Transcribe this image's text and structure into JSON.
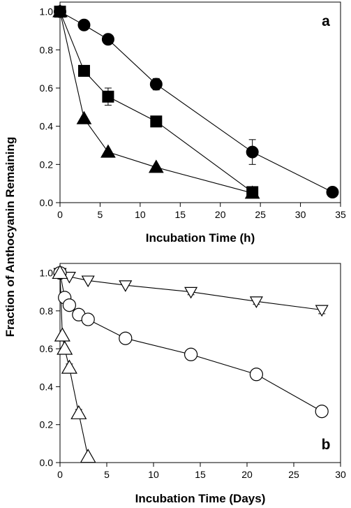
{
  "figure": {
    "ylabel": "Fraction of Anthocyanin Remaining"
  },
  "chart_data": [
    {
      "type": "line",
      "panel_label": "a",
      "xlabel": "Incubation Time (h)",
      "ylabel": "Fraction of Anthocyanin Remaining",
      "xlim": [
        0,
        35
      ],
      "ylim": [
        0,
        1.05
      ],
      "xticks": [
        0,
        5,
        10,
        15,
        20,
        25,
        30,
        35
      ],
      "yticks": [
        0.0,
        0.2,
        0.4,
        0.6,
        0.8,
        1.0
      ],
      "grid": false,
      "series": [
        {
          "marker": "circle-filled",
          "x": [
            0,
            3,
            6,
            12,
            24,
            34
          ],
          "y": [
            1.0,
            0.93,
            0.855,
            0.62,
            0.265,
            0.055
          ],
          "err": [
            0,
            0,
            0,
            0.03,
            0.065,
            0
          ]
        },
        {
          "marker": "square-filled",
          "x": [
            0,
            3,
            6,
            12,
            24
          ],
          "y": [
            1.0,
            0.69,
            0.555,
            0.425,
            0.055
          ],
          "err": [
            0,
            0,
            0.045,
            0,
            0
          ]
        },
        {
          "marker": "triangle-up-filled",
          "x": [
            0,
            3,
            6,
            12,
            24
          ],
          "y": [
            1.0,
            0.44,
            0.265,
            0.185,
            0.05
          ],
          "err": [
            0,
            0,
            0,
            0,
            0
          ]
        }
      ]
    },
    {
      "type": "line",
      "panel_label": "b",
      "xlabel": "Incubation Time (Days)",
      "ylabel": "Fraction of Anthocyanin Remaining",
      "xlim": [
        0,
        30
      ],
      "ylim": [
        0,
        1.05
      ],
      "xticks": [
        0,
        5,
        10,
        15,
        20,
        25,
        30
      ],
      "yticks": [
        0.0,
        0.2,
        0.4,
        0.6,
        0.8,
        1.0
      ],
      "grid": false,
      "series": [
        {
          "marker": "triangle-down-open",
          "x": [
            0,
            1,
            3,
            7,
            14,
            21,
            28
          ],
          "y": [
            1.0,
            0.98,
            0.96,
            0.935,
            0.9,
            0.85,
            0.805
          ],
          "err": [
            0,
            0,
            0,
            0,
            0.015,
            0.015,
            0.02
          ]
        },
        {
          "marker": "circle-open",
          "x": [
            0,
            0.5,
            1,
            2,
            3,
            7,
            14,
            21,
            28
          ],
          "y": [
            1.0,
            0.87,
            0.83,
            0.78,
            0.755,
            0.655,
            0.57,
            0.465,
            0.27
          ],
          "err": [
            0,
            0,
            0,
            0,
            0,
            0,
            0,
            0,
            0
          ]
        },
        {
          "marker": "triangle-up-open",
          "x": [
            0,
            0.25,
            0.5,
            1,
            2,
            3
          ],
          "y": [
            1.0,
            0.67,
            0.6,
            0.5,
            0.26,
            0.03
          ],
          "err": [
            0,
            0,
            0,
            0.02,
            0.02,
            0
          ]
        }
      ]
    }
  ]
}
